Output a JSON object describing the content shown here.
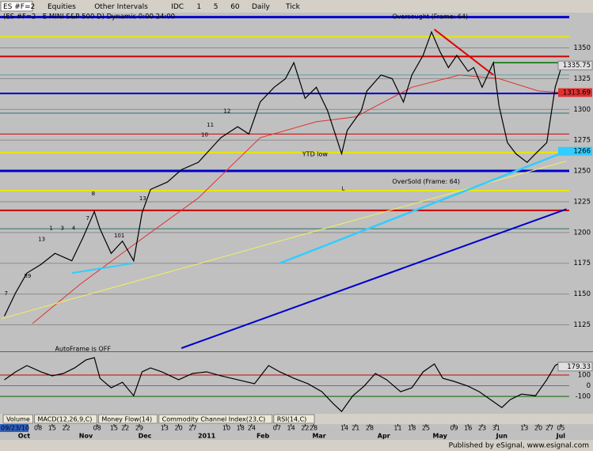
{
  "toolbar": {
    "symbol": "ES #F=2",
    "items": [
      "Equities",
      "Other Intervals",
      "IDC",
      "1",
      "5",
      "60",
      "Daily",
      "Tick"
    ]
  },
  "chart_data": [
    {
      "type": "line",
      "title": "(ES #F=2 - E MINI S&P 500 D) Dynamic 0:00 24:00",
      "color": "#000000",
      "x": [
        1,
        5,
        9,
        14,
        19,
        25,
        29,
        33,
        35,
        39,
        43,
        47,
        50,
        53,
        59,
        64,
        70,
        74,
        78,
        84,
        88,
        92,
        97,
        101,
        104,
        108,
        112,
        116,
        121,
        123,
        128,
        130,
        135,
        139,
        143,
        146,
        150,
        153,
        156,
        159,
        162,
        166,
        168,
        171,
        175,
        177,
        180,
        183,
        187,
        190,
        194,
        197,
        199,
        200
      ],
      "values": [
        1132,
        1151,
        1167,
        1174,
        1183,
        1177,
        1196,
        1217,
        1203,
        1183,
        1193,
        1177,
        1216,
        1235,
        1241,
        1251,
        1257,
        1267,
        1277,
        1286,
        1280,
        1306,
        1318,
        1325,
        1338,
        1309,
        1318,
        1299,
        1264,
        1283,
        1299,
        1315,
        1328,
        1325,
        1306,
        1328,
        1344,
        1363,
        1347,
        1334,
        1344,
        1331,
        1334,
        1318,
        1338,
        1303,
        1273,
        1264,
        1257,
        1264,
        1273,
        1318,
        1333,
        1335.75
      ],
      "xlim": [
        0,
        202
      ],
      "ylim": [
        1106,
        1378
      ],
      "yticks": [
        1125,
        1150,
        1175,
        1200,
        1225,
        1250,
        1275,
        1300,
        1325,
        1350
      ],
      "grid": true,
      "xticks": [
        {
          "value": 0,
          "label": "09/23/10"
        },
        {
          "value": 13,
          "label": "08"
        },
        {
          "value": 18,
          "label": "15"
        },
        {
          "value": 23,
          "label": "22"
        },
        {
          "value": 34,
          "label": "08"
        },
        {
          "value": 40,
          "label": "15"
        },
        {
          "value": 44,
          "label": "22"
        },
        {
          "value": 49,
          "label": "29"
        },
        {
          "value": 58,
          "label": "13"
        },
        {
          "value": 63,
          "label": "20"
        },
        {
          "value": 68,
          "label": "27"
        },
        {
          "value": 80,
          "label": "10"
        },
        {
          "value": 85,
          "label": "18"
        },
        {
          "value": 89,
          "label": "24"
        },
        {
          "value": 98,
          "label": "07"
        },
        {
          "value": 103,
          "label": "14"
        },
        {
          "value": 108,
          "label": "22"
        },
        {
          "value": 111,
          "label": "28"
        },
        {
          "value": 122,
          "label": "14"
        },
        {
          "value": 126,
          "label": "21"
        },
        {
          "value": 131,
          "label": "28"
        },
        {
          "value": 141,
          "label": "11"
        },
        {
          "value": 146,
          "label": "18"
        },
        {
          "value": 151,
          "label": "25"
        },
        {
          "value": 161,
          "label": "09"
        },
        {
          "value": 166,
          "label": "16"
        },
        {
          "value": 171,
          "label": "23"
        },
        {
          "value": 176,
          "label": "31"
        },
        {
          "value": 186,
          "label": "13"
        },
        {
          "value": 191,
          "label": "20"
        },
        {
          "value": 195,
          "label": "27"
        },
        {
          "value": 199,
          "label": "05"
        }
      ],
      "xmonthticks": [
        {
          "value": 8,
          "label": "Oct"
        },
        {
          "value": 30,
          "label": "Nov"
        },
        {
          "value": 51,
          "label": "Dec"
        },
        {
          "value": 73,
          "label": "2011"
        },
        {
          "value": 93,
          "label": "Feb"
        },
        {
          "value": 113,
          "label": "Mar"
        },
        {
          "value": 136,
          "label": "Apr"
        },
        {
          "value": 156,
          "label": "May"
        },
        {
          "value": 178,
          "label": "Jun"
        },
        {
          "value": 199,
          "label": "Jul"
        }
      ],
      "levels": [
        {
          "value": 1375,
          "color": "#0000cc",
          "width": 3
        },
        {
          "value": 1359,
          "color": "#e8e800",
          "width": 2
        },
        {
          "value": 1343,
          "color": "#cc0000",
          "width": 2
        },
        {
          "value": 1328,
          "color": "#5f9ea0",
          "width": 1
        },
        {
          "value": 1313,
          "color": "#0000cc",
          "width": 2
        },
        {
          "value": 1297,
          "color": "#2f6f6f",
          "width": 1
        },
        {
          "value": 1280,
          "color": "#cc0000",
          "width": 1
        },
        {
          "value": 1265,
          "color": "#e8e800",
          "width": 2
        },
        {
          "value": 1250,
          "color": "#0000cc",
          "width": 3
        },
        {
          "value": 1234,
          "color": "#e8e800",
          "width": 2
        },
        {
          "value": 1218,
          "color": "#cc0000",
          "width": 2
        },
        {
          "value": 1203,
          "color": "#2f6f6f",
          "width": 1
        }
      ],
      "lines": [
        {
          "color": "#e03030",
          "width": 1,
          "x": [
            11,
            28,
            47,
            70,
            92,
            112,
            126,
            146,
            163,
            177,
            191,
            200
          ],
          "values": [
            1126,
            1158,
            1190,
            1228,
            1277,
            1290,
            1294,
            1318,
            1328,
            1325,
            1315,
            1313.69
          ]
        },
        {
          "color": "#f0f060",
          "width": 1,
          "x": [
            0,
            201
          ],
          "values": [
            1130,
            1258
          ]
        },
        {
          "color": "#0000cc",
          "width": 2,
          "x": [
            64,
            201
          ],
          "values": [
            1106,
            1219
          ]
        },
        {
          "color": "#33ccff",
          "width": 2.5,
          "x": [
            99,
            201
          ],
          "values": [
            1175,
            1266.0
          ]
        },
        {
          "color": "#33ccff",
          "width": 2,
          "x": [
            25,
            47
          ],
          "values": [
            1167,
            1175
          ]
        },
        {
          "color": "#e00000",
          "width": 2,
          "x": [
            154,
            175
          ],
          "values": [
            1365,
            1328
          ]
        },
        {
          "color": "#007000",
          "width": 1.5,
          "x": [
            175,
            198
          ],
          "values": [
            1338,
            1338
          ]
        }
      ],
      "annotations": [
        {
          "text": "YTD low",
          "x": 107,
          "y": 1266,
          "color": "#000000"
        },
        {
          "text": "L",
          "x": 121,
          "y": 1238,
          "color": "#0000aa"
        },
        {
          "text": "Oversought (Frame: 64)",
          "x": 139,
          "y": 1378,
          "color": "#404040"
        },
        {
          "text": "OverSold (Frame: 64)",
          "x": 139,
          "y": 1244,
          "color": "#404040"
        },
        {
          "text": "AutoFrame is OFF",
          "x": 19,
          "y": 1108,
          "color": "#606060"
        },
        {
          "text": "7",
          "x": 1,
          "y": 1153,
          "color": "#cc0000"
        },
        {
          "text": "89",
          "x": 8,
          "y": 1167,
          "color": "#cc0000"
        },
        {
          "text": "13",
          "x": 13,
          "y": 1197,
          "color": "#cc0000"
        },
        {
          "text": "1",
          "x": 17,
          "y": 1206,
          "color": "#cc0000"
        },
        {
          "text": "3",
          "x": 21,
          "y": 1206,
          "color": "#cc0000"
        },
        {
          "text": "4",
          "x": 25,
          "y": 1206,
          "color": "#cc0000"
        },
        {
          "text": "7",
          "x": 30,
          "y": 1214,
          "color": "#cc0000"
        },
        {
          "text": "8",
          "x": 32,
          "y": 1234,
          "color": "#cc0000"
        },
        {
          "text": "101",
          "x": 40,
          "y": 1200,
          "color": "#cc0000"
        },
        {
          "text": "13",
          "x": 49,
          "y": 1230,
          "color": "#cc0000"
        },
        {
          "text": "10",
          "x": 71,
          "y": 1282,
          "color": "#cc0000"
        },
        {
          "text": "11",
          "x": 73,
          "y": 1290,
          "color": "#cc0000"
        },
        {
          "text": "12",
          "x": 79,
          "y": 1301,
          "color": "#cc0000"
        }
      ]
    },
    {
      "type": "line",
      "color": "#000000",
      "x": [
        1,
        5,
        9,
        14,
        18,
        22,
        26,
        30,
        33,
        35,
        39,
        43,
        47,
        50,
        53,
        57,
        63,
        68,
        73,
        78,
        84,
        90,
        95,
        99,
        104,
        109,
        114,
        118,
        121,
        125,
        129,
        133,
        137,
        142,
        146,
        150,
        154,
        157,
        161,
        166,
        170,
        174,
        178,
        181,
        185,
        190,
        194,
        197,
        199,
        200
      ],
      "values": [
        56,
        130,
        189,
        130,
        93,
        115,
        167,
        241,
        263,
        70,
        -19,
        33,
        -93,
        130,
        167,
        130,
        56,
        115,
        130,
        93,
        56,
        19,
        189,
        130,
        70,
        19,
        -56,
        -167,
        -240.77,
        -93,
        -4,
        115,
        56,
        -56,
        -19,
        130,
        204,
        70,
        41,
        -4,
        -56,
        -130,
        -204,
        -130,
        -78,
        -93,
        56,
        189,
        219,
        179.33
      ],
      "xlim": [
        0,
        202
      ],
      "ylim": [
        -255,
        300
      ],
      "yticks": [
        100,
        0,
        -100
      ],
      "grid_colors": [
        "#cc0000",
        "#707070",
        "#006400"
      ]
    }
  ],
  "tabs": [
    "Volume",
    "MACD(12,26,9,C)",
    "Money Flow(14)",
    "Commodity Channel Index(23,C)",
    "RSI(14,C)"
  ],
  "status": "Published by eSignal, www.esignal.com"
}
